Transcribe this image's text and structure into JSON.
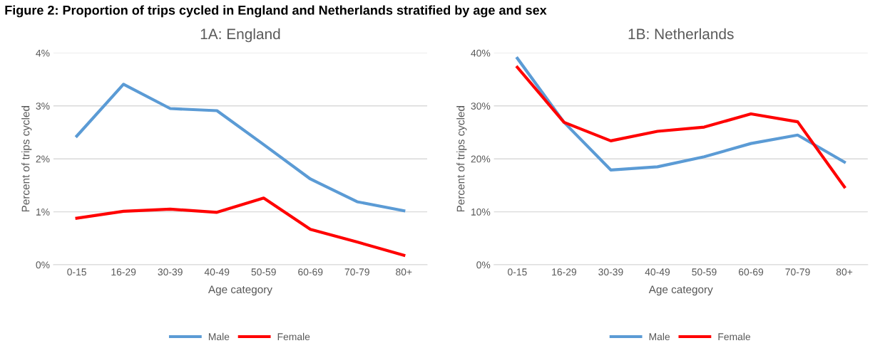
{
  "chart_data": [
    {
      "type": "line",
      "title": "1A: England",
      "xlabel": "Age category",
      "ylabel": "Percent of trips cycled",
      "categories": [
        "0-15",
        "16-29",
        "30-39",
        "40-49",
        "50-59",
        "60-69",
        "70-79",
        "80+"
      ],
      "series": [
        {
          "name": "Male",
          "color": "#5b9bd5",
          "values": [
            2.43,
            3.41,
            2.95,
            2.91,
            2.27,
            1.62,
            1.19,
            1.02
          ]
        },
        {
          "name": "Female",
          "color": "#ff0000",
          "values": [
            0.88,
            1.01,
            1.05,
            0.99,
            1.26,
            0.67,
            0.43,
            0.18
          ]
        }
      ],
      "ylim": [
        0,
        4
      ],
      "yticks": [
        {
          "value": 0,
          "label": "0%"
        },
        {
          "value": 1,
          "label": "1%"
        },
        {
          "value": 2,
          "label": "2%"
        },
        {
          "value": 3,
          "label": "3%"
        },
        {
          "value": 4,
          "label": "4%"
        }
      ],
      "grid": "y",
      "legend": "bottom",
      "annotations": [
        "Figure 2: Proportion of trips cycled in England and Netherlands stratified by age and sex"
      ]
    },
    {
      "type": "line",
      "title": "1B: Netherlands",
      "xlabel": "Age category",
      "ylabel": "Percent of trips cycled",
      "categories": [
        "0-15",
        "16-29",
        "30-39",
        "40-49",
        "50-59",
        "60-69",
        "70-79",
        "80+"
      ],
      "series": [
        {
          "name": "Male",
          "color": "#5b9bd5",
          "values": [
            39.0,
            26.9,
            17.9,
            18.5,
            20.4,
            22.9,
            24.5,
            19.4
          ]
        },
        {
          "name": "Female",
          "color": "#ff0000",
          "values": [
            37.3,
            26.9,
            23.4,
            25.2,
            26.0,
            28.5,
            27.0,
            14.7
          ]
        }
      ],
      "ylim": [
        0,
        40
      ],
      "yticks": [
        {
          "value": 0,
          "label": "0%"
        },
        {
          "value": 10,
          "label": "10%"
        },
        {
          "value": 20,
          "label": "20%"
        },
        {
          "value": 30,
          "label": "30%"
        },
        {
          "value": 40,
          "label": "40%"
        }
      ],
      "grid": "y",
      "legend": "bottom"
    }
  ]
}
